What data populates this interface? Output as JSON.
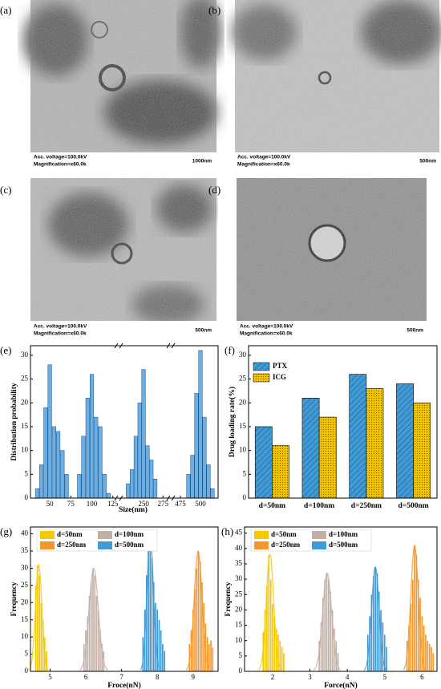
{
  "images": [
    {
      "label": "(a)",
      "voltage": "Acc. voltage=100.0kV",
      "magnification": "Magnification=x60.0k",
      "scale": "1000nm"
    },
    {
      "label": "(b)",
      "voltage": "Acc. voltage=100.0kV",
      "magnification": "Magnification=x60.0k",
      "scale": "500nm"
    },
    {
      "label": "(c)",
      "voltage": "Acc. voltage=100.0kV",
      "magnification": "Magnification=x60.0k",
      "scale": "500nm"
    },
    {
      "label": "(d)",
      "voltage": "Acc. voltage=100.0kV",
      "magnification": "Magnification=x60.0k",
      "scale": "500nm"
    }
  ],
  "chart_data": [
    {
      "type": "histogram",
      "label": "(e)",
      "x_label": "Size(nm)",
      "y_label": "Distribution probability",
      "color": "#6aaee6",
      "segments": [
        {
          "xlim": [
            27,
            130
          ],
          "xticks": [
            50,
            75,
            100,
            125
          ]
        },
        {
          "xlim": [
            222,
            282
          ],
          "xticks": [
            250,
            275
          ]
        },
        {
          "xlim": [
            466,
            522
          ],
          "xticks": [
            475,
            500
          ]
        }
      ],
      "x": [
        35,
        40,
        45,
        50,
        55,
        60,
        65,
        70,
        85,
        90,
        95,
        100,
        105,
        110,
        115,
        120,
        230,
        235,
        240,
        245,
        250,
        255,
        260,
        265,
        485,
        490,
        495,
        500,
        505,
        510,
        515
      ],
      "values": [
        2,
        7,
        19,
        28,
        15,
        14,
        10,
        5,
        5,
        13,
        21,
        26,
        17,
        15,
        5,
        1,
        3,
        6,
        13,
        20,
        27,
        11,
        8,
        4,
        5,
        9,
        22,
        31,
        17,
        7,
        2
      ],
      "ylim": [
        0,
        32
      ],
      "yticks": [
        0,
        5,
        10,
        15,
        20,
        25,
        30
      ]
    },
    {
      "type": "bar",
      "label": "(f)",
      "y_label": "Drug loading rate(%)",
      "categories": [
        "d=50nm",
        "d=100nm",
        "d=250nm",
        "d=500nm"
      ],
      "series": [
        {
          "name": "PTX",
          "color": "#3f9ad6",
          "values": [
            15,
            21,
            26,
            24
          ]
        },
        {
          "name": "ICG",
          "color": "#f2c300",
          "values": [
            11,
            17,
            23,
            20
          ]
        }
      ],
      "ylim": [
        0,
        32
      ],
      "yticks": [
        0,
        5,
        10,
        15,
        20,
        25,
        30
      ],
      "legend": "top-left"
    },
    {
      "type": "histogram",
      "label": "(g)",
      "x_label": "Froce(nN)",
      "y_label": "Frequency",
      "xlim": [
        4.45,
        9.7
      ],
      "xticks": [
        5,
        6,
        7,
        8,
        9
      ],
      "ylim": [
        0,
        42
      ],
      "yticks": [
        0,
        5,
        10,
        15,
        20,
        25,
        30,
        35,
        40
      ],
      "legend": "top-left",
      "series": [
        {
          "name": "d=50nm",
          "color": "#f5c800",
          "x": [
            4.6,
            4.65,
            4.7,
            4.75,
            4.8,
            4.85,
            4.9
          ],
          "values": [
            25,
            31,
            28,
            20,
            15,
            10,
            6
          ],
          "fit_mean": 4.68,
          "fit_sd": 0.09,
          "fit_peak": 31
        },
        {
          "name": "d=100nm",
          "color": "#c2b0a6",
          "x": [
            5.95,
            6.0,
            6.05,
            6.1,
            6.15,
            6.2,
            6.25,
            6.3,
            6.35,
            6.4,
            6.45,
            6.5
          ],
          "values": [
            8,
            12,
            16,
            22,
            26,
            30,
            28,
            22,
            18,
            12,
            8,
            6
          ],
          "fit_mean": 6.22,
          "fit_sd": 0.13,
          "fit_peak": 30
        },
        {
          "name": "d=250nm",
          "color": "#f4982e",
          "x": [
            8.9,
            8.95,
            9.0,
            9.05,
            9.1,
            9.15,
            9.2,
            9.25,
            9.3,
            9.35,
            9.4,
            9.45,
            9.5,
            9.55
          ],
          "values": [
            8,
            12,
            18,
            24,
            30,
            35,
            32,
            26,
            20,
            14,
            10,
            8,
            9,
            7
          ],
          "fit_mean": 9.14,
          "fit_sd": 0.11,
          "fit_peak": 35
        },
        {
          "name": "d=500nm",
          "color": "#3f9ad6",
          "x": [
            7.6,
            7.65,
            7.7,
            7.75,
            7.8,
            7.85,
            7.9,
            7.95,
            8.0,
            8.05,
            8.1,
            8.15,
            8.2
          ],
          "values": [
            10,
            18,
            28,
            35,
            39,
            33,
            26,
            20,
            18,
            15,
            12,
            8,
            6
          ],
          "fit_mean": 7.8,
          "fit_sd": 0.09,
          "fit_peak": 39
        }
      ]
    },
    {
      "type": "histogram",
      "label": "(h)",
      "x_label": "Force(nN)",
      "y_label": "Frequency",
      "xlim": [
        1.25,
        6.4
      ],
      "xticks": [
        2,
        3,
        4,
        5,
        6
      ],
      "ylim": [
        0,
        47
      ],
      "yticks": [
        0,
        5,
        10,
        15,
        20,
        25,
        30,
        35,
        40,
        45
      ],
      "legend": "top-left",
      "series": [
        {
          "name": "d=50nm",
          "color": "#f5c800",
          "x": [
            1.75,
            1.8,
            1.85,
            1.9,
            1.95,
            2.0,
            2.05,
            2.1,
            2.15,
            2.2,
            2.25,
            2.3
          ],
          "values": [
            13,
            20,
            28,
            38,
            30,
            22,
            18,
            14,
            12,
            10,
            8,
            6
          ],
          "fit_mean": 1.93,
          "fit_sd": 0.1,
          "fit_peak": 38
        },
        {
          "name": "d=100nm",
          "color": "#c2b0a6",
          "x": [
            3.25,
            3.3,
            3.35,
            3.4,
            3.45,
            3.5,
            3.55,
            3.6,
            3.65,
            3.7,
            3.75
          ],
          "values": [
            10,
            16,
            24,
            30,
            32,
            30,
            26,
            20,
            14,
            10,
            6
          ],
          "fit_mean": 3.46,
          "fit_sd": 0.12,
          "fit_peak": 32
        },
        {
          "name": "d=250nm",
          "color": "#f4982e",
          "x": [
            5.6,
            5.65,
            5.7,
            5.75,
            5.8,
            5.85,
            5.9,
            5.95,
            6.0,
            6.05,
            6.1,
            6.15,
            6.2,
            6.25,
            6.3
          ],
          "values": [
            10,
            15,
            22,
            30,
            41,
            38,
            30,
            24,
            18,
            15,
            12,
            10,
            9,
            8,
            6
          ],
          "fit_mean": 5.8,
          "fit_sd": 0.1,
          "fit_peak": 41
        },
        {
          "name": "d=500nm",
          "color": "#3f9ad6",
          "x": [
            4.55,
            4.6,
            4.65,
            4.7,
            4.75,
            4.8,
            4.85,
            4.9,
            4.95,
            5.0,
            5.05
          ],
          "values": [
            12,
            18,
            25,
            31,
            34,
            32,
            26,
            20,
            16,
            12,
            8
          ],
          "fit_mean": 4.75,
          "fit_sd": 0.1,
          "fit_peak": 34
        }
      ]
    }
  ]
}
